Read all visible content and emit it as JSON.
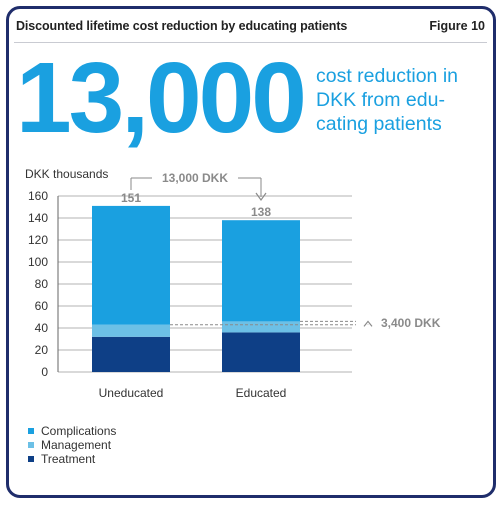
{
  "header": {
    "title": "Discounted lifetime cost reduction by educating patients",
    "figure_label": "Figure 10"
  },
  "headline": {
    "number": "13,000",
    "caption_lines": [
      "cost reduction in",
      "DKK from edu-",
      "cating patients"
    ]
  },
  "colors": {
    "complications": "#1aa0e0",
    "management": "#6cc0e6",
    "treatment": "#0e3f86",
    "annotation": "#8a8a8a"
  },
  "chart_data": {
    "type": "bar",
    "stacked": true,
    "ylabel": "DKK thousands",
    "ylim": [
      0,
      160
    ],
    "yticks": [
      0,
      20,
      40,
      60,
      80,
      100,
      120,
      140,
      160
    ],
    "grid": true,
    "categories": [
      "Uneducated",
      "Educated"
    ],
    "series": [
      {
        "name": "Treatment",
        "values": [
          32,
          36
        ]
      },
      {
        "name": "Management",
        "values": [
          11,
          10
        ]
      },
      {
        "name": "Complications",
        "values": [
          108,
          92
        ]
      }
    ],
    "totals": [
      151,
      138
    ],
    "total_labels": [
      "151",
      "138"
    ],
    "annotations": {
      "difference_total": "13,000 DKK",
      "difference_treatment_management": "3,400 DKK"
    },
    "legend": {
      "placement": "bottom-left",
      "entries": [
        "Complications",
        "Management",
        "Treatment"
      ]
    }
  }
}
